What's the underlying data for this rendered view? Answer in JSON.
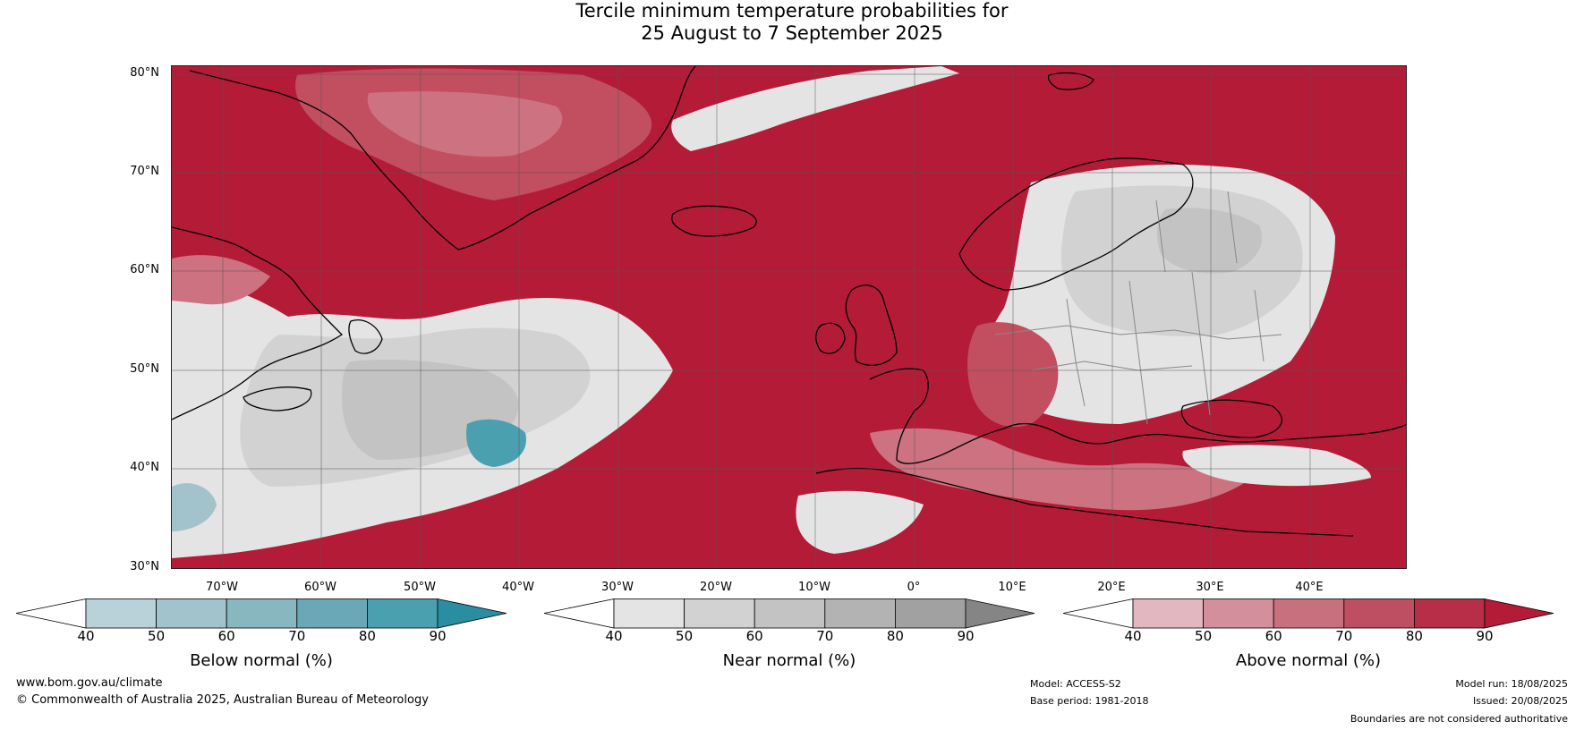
{
  "title": {
    "line1": "Tercile minimum temperature probabilities for",
    "line2": "25 August to 7 September 2025"
  },
  "map": {
    "lat_labels": [
      "80°N",
      "70°N",
      "60°N",
      "50°N",
      "40°N",
      "30°N"
    ],
    "lon_labels": [
      "70°W",
      "60°W",
      "50°W",
      "40°W",
      "30°W",
      "20°W",
      "10°W",
      "0°",
      "10°E",
      "20°E",
      "30°E",
      "40°E"
    ],
    "colors": {
      "above_normal": [
        "#e6bcc2",
        "#d8949e",
        "#cc7280",
        "#c14f60",
        "#b82f45",
        "#b41b37"
      ],
      "near_normal": [
        "#e4e4e4",
        "#d2d2d2",
        "#c3c3c3",
        "#b3b3b3",
        "#a1a1a1",
        "#858585"
      ],
      "below_normal": [
        "#b9d1d9",
        "#a2c3cc",
        "#89b7c0",
        "#6aa8b6",
        "#4ba0b0",
        "#2a8ea3"
      ],
      "coastline": "#000000",
      "borders": "#888888"
    }
  },
  "colorbars": [
    {
      "id": "below",
      "label": "Below normal (%)",
      "ticks": [
        "40",
        "50",
        "60",
        "70",
        "80",
        "90"
      ],
      "colors": [
        "#b9d1d9",
        "#a2c3cc",
        "#89b7c0",
        "#6aa8b6",
        "#4ba0b0"
      ],
      "over_color": "#2a8ea3"
    },
    {
      "id": "near",
      "label": "Near normal (%)",
      "ticks": [
        "40",
        "50",
        "60",
        "70",
        "80",
        "90"
      ],
      "colors": [
        "#e4e4e4",
        "#d2d2d2",
        "#c3c3c3",
        "#b3b3b3",
        "#a1a1a1"
      ],
      "over_color": "#858585"
    },
    {
      "id": "above",
      "label": "Above normal (%)",
      "ticks": [
        "40",
        "50",
        "60",
        "70",
        "80",
        "90"
      ],
      "colors": [
        "#e2b7bf",
        "#d38f9b",
        "#c9707f",
        "#be4e62",
        "#b62e47"
      ],
      "over_color": "#b41b37"
    }
  ],
  "footer": {
    "website": "www.bom.gov.au/climate",
    "copyright": "© Commonwealth of Australia 2025, Australian Bureau of Meteorology",
    "model": "Model: ACCESS-S2",
    "base_period": "Base period: 1981-2018",
    "model_run": "Model run: 18/08/2025",
    "issued": "Issued: 20/08/2025",
    "disclaimer": "Boundaries are not considered authoritative"
  }
}
